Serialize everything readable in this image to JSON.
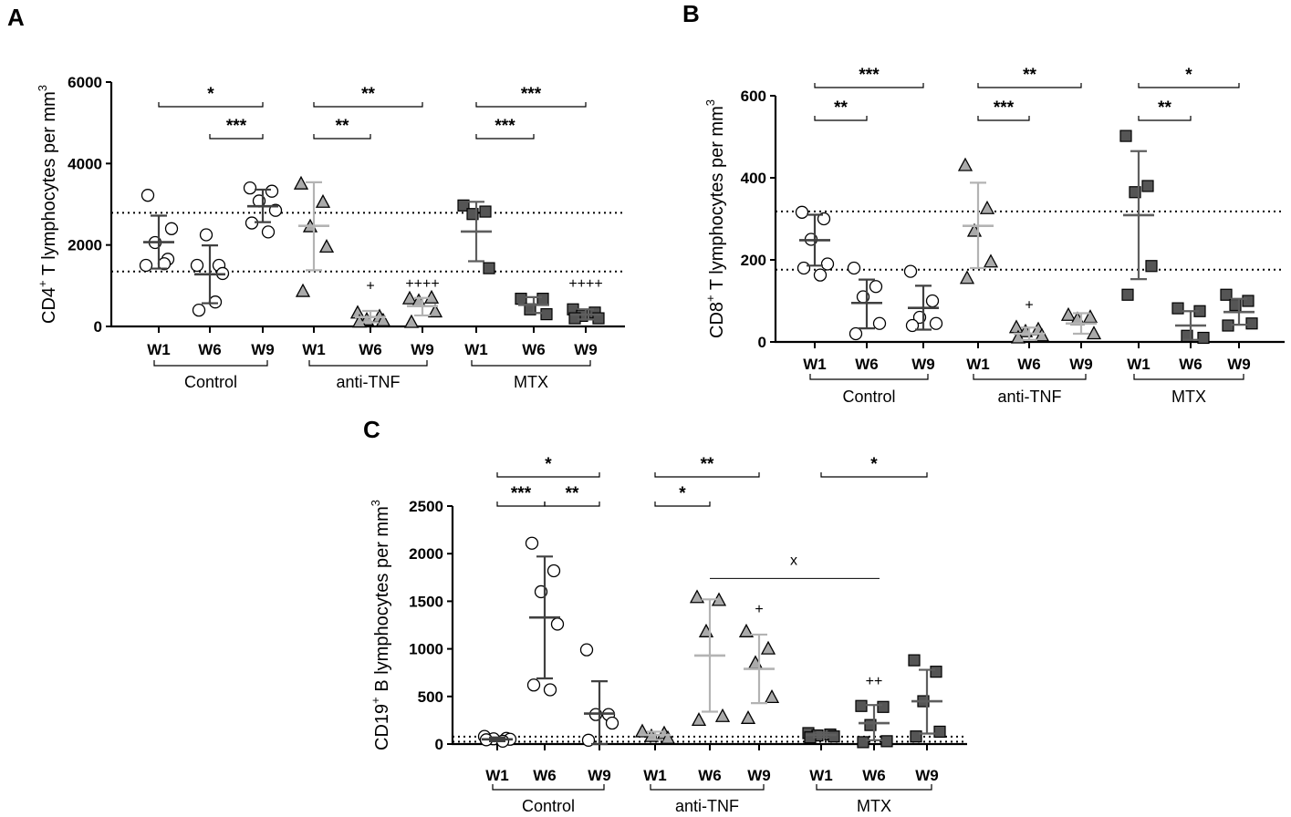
{
  "chart_data": [
    {
      "id": "A",
      "type": "scatter",
      "panel_label": "A",
      "ylabel_main": "CD4",
      "ylabel_sup": "+",
      "ylabel_rest": " T lymphocytes per mm",
      "ylabel_exp": "3",
      "ylim": [
        0,
        6000
      ],
      "yticks": [
        0,
        2000,
        4000,
        6000
      ],
      "reference_lines": [
        1350,
        2790
      ],
      "groups": [
        {
          "name": "Control",
          "marker": "circle",
          "fill": "#ffffff",
          "errcolor": "#404040",
          "points": [
            {
              "label": "W1",
              "values": [
                1500,
                1650,
                2060,
                2400,
                3220,
                1540
              ],
              "mean": 2070,
              "sd_low": 1420,
              "sd_high": 2720
            },
            {
              "label": "W6",
              "values": [
                1500,
                1500,
                2250,
                1300,
                400,
                600
              ],
              "mean": 1280,
              "sd_low": 570,
              "sd_high": 1990
            },
            {
              "label": "W9",
              "values": [
                3400,
                3320,
                3080,
                2850,
                2540,
                2320
              ],
              "mean": 2950,
              "sd_low": 2560,
              "sd_high": 3360
            }
          ],
          "significance": [
            {
              "from": "W1",
              "to": "W9",
              "label": "*",
              "level": 1
            },
            {
              "from": "W6",
              "to": "W9",
              "label": "***",
              "level": 0
            }
          ],
          "markers": []
        },
        {
          "name": "anti-TNF",
          "marker": "triangle",
          "fill": "#aaaaaa",
          "errcolor": "#b3b3b3",
          "points": [
            {
              "label": "W1",
              "values": [
                3500,
                3050,
                2450,
                1950,
                860
              ],
              "mean": 2470,
              "sd_low": 1380,
              "sd_high": 3540
            },
            {
              "label": "W6",
              "values": [
                330,
                240,
                160,
                140,
                110
              ],
              "mean": 230,
              "sd_low": 100,
              "sd_high": 380
            },
            {
              "label": "W9",
              "values": [
                680,
                700,
                620,
                360,
                100
              ],
              "mean": 500,
              "sd_low": 270,
              "sd_high": 700
            }
          ],
          "significance": [
            {
              "from": "W1",
              "to": "W9",
              "label": "**",
              "level": 1
            },
            {
              "from": "W1",
              "to": "W6",
              "label": "**",
              "level": 0
            }
          ],
          "markers": [
            {
              "at": "W6",
              "text": "+",
              "value": 1000
            },
            {
              "at": "W9",
              "text": "++++",
              "value": 1050
            }
          ]
        },
        {
          "name": "MTX",
          "marker": "square",
          "fill": "#555555",
          "errcolor": "#5e5e5e",
          "points": [
            {
              "label": "W1",
              "values": [
                2970,
                2820,
                2760,
                1430
              ],
              "mean": 2330,
              "sd_low": 1600,
              "sd_high": 3060
            },
            {
              "label": "W6",
              "values": [
                680,
                680,
                420,
                300
              ],
              "mean": 530,
              "sd_low": 330,
              "sd_high": 720
            },
            {
              "label": "W9",
              "values": [
                420,
                340,
                260,
                200,
                200
              ],
              "mean": 290,
              "sd_low": 170,
              "sd_high": 420
            }
          ],
          "significance": [
            {
              "from": "W1",
              "to": "W9",
              "label": "***",
              "level": 1
            },
            {
              "from": "W1",
              "to": "W6",
              "label": "***",
              "level": 0
            }
          ],
          "markers": [
            {
              "at": "W9",
              "text": "++++",
              "value": 1050
            }
          ]
        }
      ],
      "extra_comparisons": []
    },
    {
      "id": "B",
      "type": "scatter",
      "panel_label": "B",
      "ylabel_main": "CD8",
      "ylabel_sup": "+",
      "ylabel_rest": " T lymphocytes per mm",
      "ylabel_exp": "3",
      "ylim": [
        0,
        600
      ],
      "yticks": [
        0,
        200,
        400,
        600
      ],
      "reference_lines": [
        176,
        318
      ],
      "groups": [
        {
          "name": "Control",
          "marker": "circle",
          "fill": "#ffffff",
          "errcolor": "#404040",
          "points": [
            {
              "label": "W1",
              "values": [
                316,
                300,
                250,
                190,
                180,
                163
              ],
              "mean": 248,
              "sd_low": 186,
              "sd_high": 310
            },
            {
              "label": "W6",
              "values": [
                180,
                135,
                110,
                45,
                20
              ],
              "mean": 95,
              "sd_low": 33,
              "sd_high": 152
            },
            {
              "label": "W9",
              "values": [
                172,
                100,
                60,
                45,
                40
              ],
              "mean": 83,
              "sd_low": 30,
              "sd_high": 137
            }
          ],
          "significance": [
            {
              "from": "W1",
              "to": "W9",
              "label": "***",
              "level": 1
            },
            {
              "from": "W1",
              "to": "W6",
              "label": "**",
              "level": 0
            }
          ],
          "markers": []
        },
        {
          "name": "anti-TNF",
          "marker": "triangle",
          "fill": "#aaaaaa",
          "errcolor": "#b3b3b3",
          "points": [
            {
              "label": "W1",
              "values": [
                430,
                325,
                270,
                195,
                155
              ],
              "mean": 283,
              "sd_low": 180,
              "sd_high": 388
            },
            {
              "label": "W6",
              "values": [
                35,
                30,
                25,
                15,
                10
              ],
              "mean": 20,
              "sd_low": 5,
              "sd_high": 35
            },
            {
              "label": "W9",
              "values": [
                65,
                60,
                55,
                20
              ],
              "mean": 45,
              "sd_low": 20,
              "sd_high": 70
            }
          ],
          "significance": [
            {
              "from": "W1",
              "to": "W9",
              "label": "**",
              "level": 1
            },
            {
              "from": "W1",
              "to": "W6",
              "label": "***",
              "level": 0
            }
          ],
          "markers": [
            {
              "at": "W6",
              "text": "+",
              "value": 90
            }
          ]
        },
        {
          "name": "MTX",
          "marker": "square",
          "fill": "#555555",
          "errcolor": "#5e5e5e",
          "points": [
            {
              "label": "W1",
              "values": [
                502,
                380,
                365,
                185,
                115
              ],
              "mean": 309,
              "sd_low": 153,
              "sd_high": 465
            },
            {
              "label": "W6",
              "values": [
                82,
                75,
                15,
                10
              ],
              "mean": 40,
              "sd_low": 5,
              "sd_high": 75
            },
            {
              "label": "W9",
              "values": [
                115,
                100,
                90,
                45,
                40
              ],
              "mean": 73,
              "sd_low": 42,
              "sd_high": 105
            }
          ],
          "significance": [
            {
              "from": "W1",
              "to": "W9",
              "label": "*",
              "level": 1
            },
            {
              "from": "W1",
              "to": "W6",
              "label": "**",
              "level": 0
            }
          ],
          "markers": []
        }
      ],
      "extra_comparisons": []
    },
    {
      "id": "C",
      "type": "scatter",
      "panel_label": "C",
      "ylabel_main": "CD19",
      "ylabel_sup": "+",
      "ylabel_rest": " B lymphocytes per mm",
      "ylabel_exp": "3",
      "ylim": [
        0,
        2500
      ],
      "yticks": [
        0,
        500,
        1000,
        1500,
        2000,
        2500
      ],
      "reference_lines": [
        25,
        78
      ],
      "groups": [
        {
          "name": "Control",
          "marker": "circle",
          "fill": "#ffffff",
          "errcolor": "#404040",
          "points": [
            {
              "label": "W1",
              "values": [
                80,
                60,
                55,
                50,
                45,
                30
              ],
              "mean": 50,
              "sd_low": 30,
              "sd_high": 70
            },
            {
              "label": "W6",
              "values": [
                2110,
                1820,
                1600,
                1260,
                620,
                570
              ],
              "mean": 1330,
              "sd_low": 690,
              "sd_high": 1970
            },
            {
              "label": "W9",
              "values": [
                990,
                310,
                310,
                220,
                40
              ],
              "mean": 320,
              "sd_low": -20,
              "sd_high": 660
            }
          ],
          "significance": [
            {
              "from": "W1",
              "to": "W9",
              "label": "*",
              "level": 1
            },
            {
              "from": "W1",
              "to": "W6",
              "label": "***",
              "level": 0
            },
            {
              "from": "W6",
              "to": "W9",
              "label": "**",
              "level": 0
            }
          ],
          "markers": []
        },
        {
          "name": "anti-TNF",
          "marker": "triangle",
          "fill": "#aaaaaa",
          "errcolor": "#b3b3b3",
          "points": [
            {
              "label": "W1",
              "values": [
                130,
                110,
                80,
                60
              ],
              "mean": 95,
              "sd_low": 45,
              "sd_high": 130
            },
            {
              "label": "W6",
              "values": [
                1540,
                1510,
                1180,
                290,
                250
              ],
              "mean": 930,
              "sd_low": 340,
              "sd_high": 1520
            },
            {
              "label": "W9",
              "values": [
                1180,
                1000,
                850,
                490,
                270
              ],
              "mean": 790,
              "sd_low": 430,
              "sd_high": 1150
            }
          ],
          "significance": [
            {
              "from": "W1",
              "to": "W9",
              "label": "**",
              "level": 1
            },
            {
              "from": "W1",
              "to": "W6",
              "label": "*",
              "level": 0
            }
          ],
          "markers": [
            {
              "at": "W9",
              "text": "+",
              "value": 1420
            }
          ]
        },
        {
          "name": "MTX",
          "marker": "square",
          "fill": "#555555",
          "errcolor": "#5e5e5e",
          "points": [
            {
              "label": "W1",
              "values": [
                115,
                100,
                90,
                80,
                70
              ],
              "mean": 95,
              "sd_low": 70,
              "sd_high": 120
            },
            {
              "label": "W6",
              "values": [
                400,
                390,
                200,
                30,
                20
              ],
              "mean": 220,
              "sd_low": 40,
              "sd_high": 410
            },
            {
              "label": "W9",
              "values": [
                880,
                760,
                450,
                130,
                80
              ],
              "mean": 450,
              "sd_low": 110,
              "sd_high": 780
            }
          ],
          "significance": [
            {
              "from": "W1",
              "to": "W9",
              "label": "*",
              "level": 1
            }
          ],
          "markers": [
            {
              "at": "W6",
              "text": "++",
              "value": 660
            }
          ]
        }
      ],
      "extra_comparisons": [
        {
          "from_group": "anti-TNF",
          "from": "W6",
          "to_group": "MTX",
          "to": "W6",
          "label": "x",
          "value": 1740
        }
      ]
    }
  ]
}
